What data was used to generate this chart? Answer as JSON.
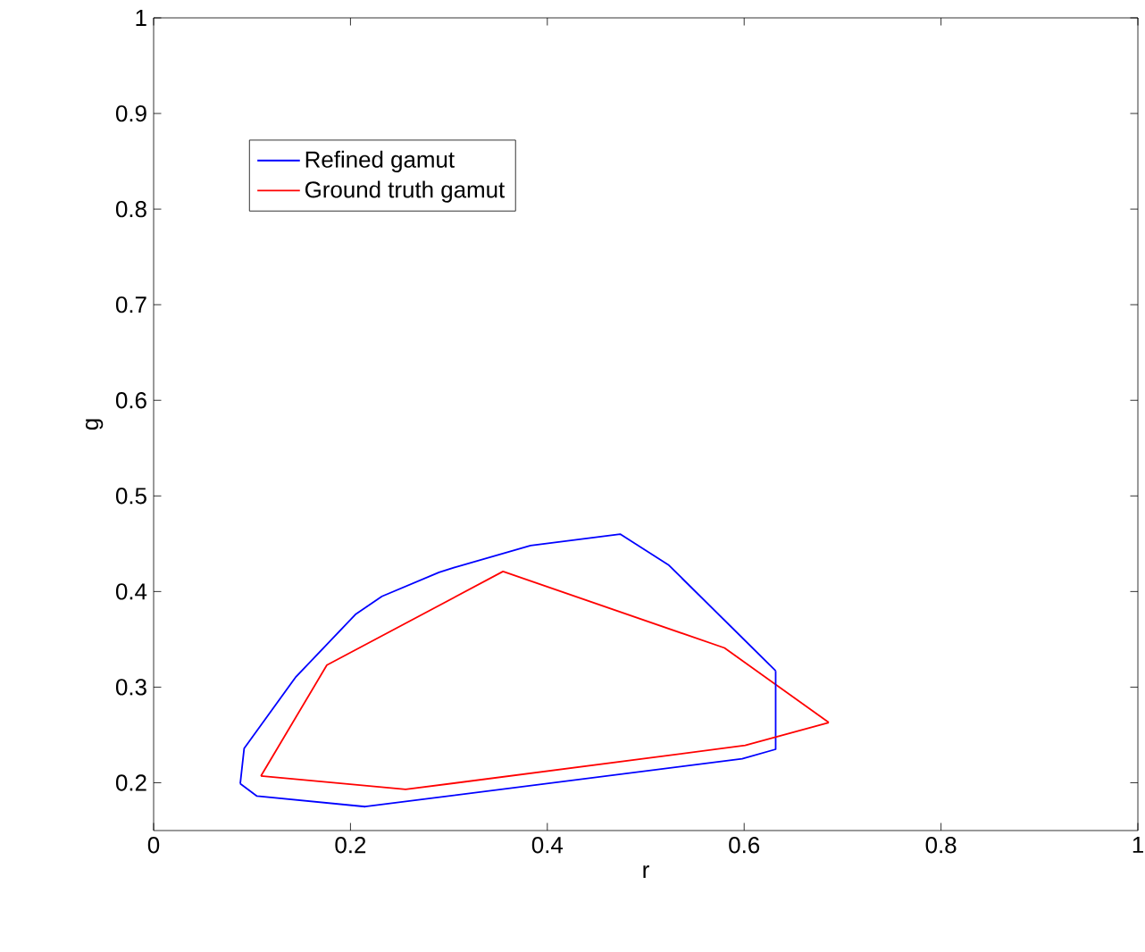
{
  "chart_data": {
    "type": "line",
    "xlabel": "r",
    "ylabel": "g",
    "xlim": [
      0,
      1
    ],
    "ylim": [
      0.15,
      1
    ],
    "xticks": [
      0,
      0.2,
      0.4,
      0.6,
      0.8,
      1
    ],
    "yticks": [
      0.2,
      0.3,
      0.4,
      0.5,
      0.6,
      0.7,
      0.8,
      0.9,
      1
    ],
    "legend": "top left",
    "grid": false,
    "marker": "none",
    "series": [
      {
        "name": "Refined gamut",
        "color": "#0000ff",
        "x": [
          0.088,
          0.092,
          0.144,
          0.205,
          0.232,
          0.29,
          0.305,
          0.383,
          0.474,
          0.523,
          0.632
        ],
        "values": [
          0.199,
          0.236,
          0.31,
          0.376,
          0.395,
          0.42,
          0.425,
          0.448,
          0.46,
          0.428,
          0.317
        ]
      },
      {
        "name": "Ground truth gamut",
        "color": "#ff0000",
        "x": [
          0.109,
          0.176,
          0.355,
          0.58,
          0.686
        ],
        "values": [
          0.207,
          0.323,
          0.421,
          0.341,
          0.263
        ]
      },
      {
        "color": "#0000ff",
        "x": [
          0.088,
          0.105,
          0.215,
          0.598,
          0.632,
          0.632
        ],
        "values": [
          0.199,
          0.186,
          0.175,
          0.225,
          0.235,
          0.317
        ]
      },
      {
        "color": "#ff0000",
        "x": [
          0.109,
          0.256,
          0.601,
          0.686
        ],
        "values": [
          0.207,
          0.193,
          0.239,
          0.263
        ]
      }
    ]
  }
}
